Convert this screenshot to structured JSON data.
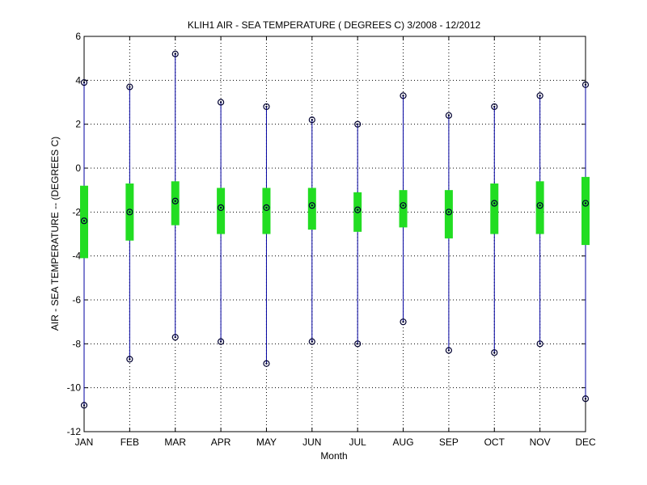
{
  "chart_data": {
    "type": "box",
    "title": "KLIH1  AIR - SEA TEMPERATURE ( DEGREES C) 3/2008 - 12/2012",
    "xlabel": "Month",
    "ylabel": "AIR - SEA TEMPERATURE -- (DEGREES C)",
    "ylim": [
      -12,
      6
    ],
    "yticks": [
      -12,
      -10,
      -8,
      -6,
      -4,
      -2,
      0,
      2,
      4,
      6
    ],
    "grid": true,
    "categories": [
      "JAN",
      "FEB",
      "MAR",
      "APR",
      "MAY",
      "JUN",
      "JUL",
      "AUG",
      "SEP",
      "OCT",
      "NOV",
      "DEC"
    ],
    "min": [
      -10.8,
      -8.7,
      -7.7,
      -7.9,
      -8.9,
      -7.9,
      -8.0,
      -7.0,
      -8.3,
      -8.4,
      -8.0,
      -10.5
    ],
    "max": [
      3.9,
      3.7,
      5.2,
      3.0,
      2.8,
      2.2,
      2.0,
      3.3,
      2.4,
      2.8,
      3.3,
      3.8
    ],
    "q_low": [
      -4.1,
      -3.3,
      -2.6,
      -3.0,
      -3.0,
      -2.8,
      -2.9,
      -2.7,
      -3.2,
      -3.0,
      -3.0,
      -3.5
    ],
    "q_high": [
      -0.8,
      -0.7,
      -0.6,
      -0.9,
      -0.9,
      -0.9,
      -1.1,
      -1.0,
      -1.0,
      -0.7,
      -0.6,
      -0.4
    ],
    "median": [
      -2.4,
      -2.0,
      -1.5,
      -1.8,
      -1.8,
      -1.7,
      -1.9,
      -1.7,
      -2.0,
      -1.6,
      -1.7,
      -1.6
    ],
    "colors": {
      "whisker": "#0000a0",
      "box": "#22dd22",
      "marker": "#000030",
      "axis": "#000000",
      "grid": "#000000"
    }
  }
}
